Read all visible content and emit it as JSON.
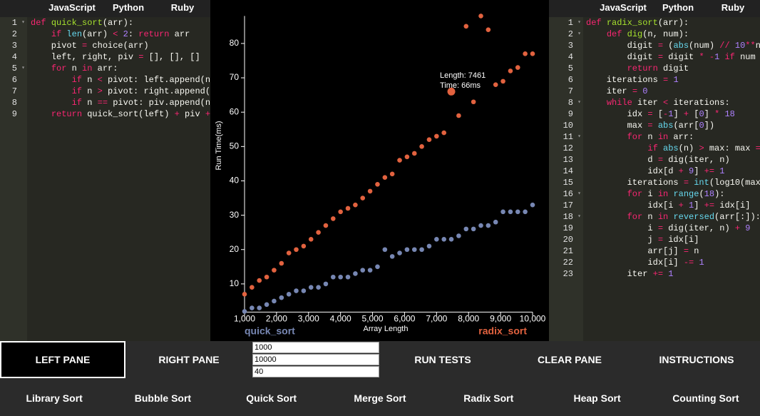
{
  "left_pane": {
    "tabs": [
      "JavaScript",
      "Python",
      "Ruby"
    ],
    "active_tab": 1,
    "lines": [
      {
        "n": 1,
        "fold": true,
        "tokens": [
          [
            "def",
            "kw"
          ],
          " ",
          [
            "quick_sort",
            "fn"
          ],
          "(arr):"
        ]
      },
      {
        "n": 2,
        "tokens": [
          "    ",
          [
            "if",
            "kw"
          ],
          " ",
          [
            "len",
            "bi"
          ],
          "(arr) ",
          [
            "<",
            "kw"
          ],
          " ",
          [
            "2",
            "num"
          ],
          ": ",
          [
            "return",
            "kw"
          ],
          " arr"
        ]
      },
      {
        "n": 3,
        "tokens": [
          "    pivot ",
          [
            "=",
            "kw"
          ],
          " choice(arr)"
        ]
      },
      {
        "n": 4,
        "tokens": [
          "    left, right, piv ",
          [
            "=",
            "kw"
          ],
          " [], [], []"
        ]
      },
      {
        "n": 5,
        "fold": true,
        "tokens": [
          "    ",
          [
            "for",
            "kw"
          ],
          " n ",
          [
            "in",
            "kw"
          ],
          " arr:"
        ]
      },
      {
        "n": 6,
        "tokens": [
          "        ",
          [
            "if",
            "kw"
          ],
          " n ",
          [
            "<",
            "kw"
          ],
          " pivot: left.append(n"
        ]
      },
      {
        "n": 7,
        "tokens": [
          "        ",
          [
            "if",
            "kw"
          ],
          " n ",
          [
            ">",
            "kw"
          ],
          " pivot: right.append("
        ]
      },
      {
        "n": 8,
        "tokens": [
          "        ",
          [
            "if",
            "kw"
          ],
          " n ",
          [
            "==",
            "kw"
          ],
          " pivot: piv.append(n"
        ]
      },
      {
        "n": 9,
        "tokens": [
          "    ",
          [
            "return",
            "kw"
          ],
          " quick_sort(left) ",
          [
            "+",
            "kw"
          ],
          " piv ",
          [
            "+",
            "kw"
          ]
        ]
      }
    ]
  },
  "right_pane": {
    "tabs": [
      "JavaScript",
      "Python",
      "Ruby"
    ],
    "active_tab": 1,
    "lines": [
      {
        "n": 1,
        "fold": true,
        "tokens": [
          [
            "def",
            "kw"
          ],
          " ",
          [
            "radix_sort",
            "fn"
          ],
          "(arr):"
        ]
      },
      {
        "n": 2,
        "fold": true,
        "tokens": [
          "    ",
          [
            "def",
            "kw"
          ],
          " ",
          [
            "dig",
            "fn"
          ],
          "(n, num):"
        ]
      },
      {
        "n": 3,
        "tokens": [
          "        digit ",
          [
            "=",
            "kw"
          ],
          " (",
          [
            "abs",
            "bi"
          ],
          "(num) ",
          [
            "//",
            "kw"
          ],
          " ",
          [
            "10",
            "num"
          ],
          [
            "**",
            "kw"
          ],
          "n"
        ]
      },
      {
        "n": 4,
        "tokens": [
          "        digit ",
          [
            "=",
            "kw"
          ],
          " digit ",
          [
            "*",
            "kw"
          ],
          " ",
          [
            "-",
            "kw"
          ],
          [
            "1",
            "num"
          ],
          " ",
          [
            "if",
            "kw"
          ],
          " num"
        ]
      },
      {
        "n": 5,
        "tokens": [
          "        ",
          [
            "return",
            "kw"
          ],
          " digit"
        ]
      },
      {
        "n": 6,
        "tokens": [
          "    iterations ",
          [
            "=",
            "kw"
          ],
          " ",
          [
            "1",
            "num"
          ]
        ]
      },
      {
        "n": 7,
        "tokens": [
          "    iter ",
          [
            "=",
            "kw"
          ],
          " ",
          [
            "0",
            "num"
          ]
        ]
      },
      {
        "n": 8,
        "fold": true,
        "tokens": [
          "    ",
          [
            "while",
            "kw"
          ],
          " iter ",
          [
            "<",
            "kw"
          ],
          " iterations:"
        ]
      },
      {
        "n": 9,
        "tokens": [
          "        idx ",
          [
            "=",
            "kw"
          ],
          " [",
          [
            "-",
            "kw"
          ],
          [
            "1",
            "num"
          ],
          "] ",
          [
            "+",
            "kw"
          ],
          " [",
          [
            "0",
            "num"
          ],
          "] ",
          [
            "*",
            "kw"
          ],
          " ",
          [
            "18",
            "num"
          ]
        ]
      },
      {
        "n": 10,
        "tokens": [
          "        max ",
          [
            "=",
            "kw"
          ],
          " ",
          [
            "abs",
            "bi"
          ],
          "(arr[",
          [
            "0",
            "num"
          ],
          "])"
        ]
      },
      {
        "n": 11,
        "fold": true,
        "tokens": [
          "        ",
          [
            "for",
            "kw"
          ],
          " n ",
          [
            "in",
            "kw"
          ],
          " arr:"
        ]
      },
      {
        "n": 12,
        "tokens": [
          "            ",
          [
            "if",
            "kw"
          ],
          " ",
          [
            "abs",
            "bi"
          ],
          "(n) ",
          [
            ">",
            "kw"
          ],
          " max: max ",
          [
            "=",
            "kw"
          ]
        ]
      },
      {
        "n": 13,
        "tokens": [
          "            d ",
          [
            "=",
            "kw"
          ],
          " dig(iter, n)"
        ]
      },
      {
        "n": 14,
        "tokens": [
          "            idx[d ",
          [
            "+",
            "kw"
          ],
          " ",
          [
            "9",
            "num"
          ],
          "] ",
          [
            "+=",
            "kw"
          ],
          " ",
          [
            "1",
            "num"
          ]
        ]
      },
      {
        "n": 15,
        "tokens": [
          "        iterations ",
          [
            "=",
            "kw"
          ],
          " ",
          [
            "int",
            "bi"
          ],
          "(log10(max"
        ]
      },
      {
        "n": 16,
        "fold": true,
        "tokens": [
          "        ",
          [
            "for",
            "kw"
          ],
          " i ",
          [
            "in",
            "kw"
          ],
          " ",
          [
            "range",
            "bi"
          ],
          "(",
          [
            "18",
            "num"
          ],
          "):"
        ]
      },
      {
        "n": 17,
        "tokens": [
          "            idx[i ",
          [
            "+",
            "kw"
          ],
          " ",
          [
            "1",
            "num"
          ],
          "] ",
          [
            "+=",
            "kw"
          ],
          " idx[i]"
        ]
      },
      {
        "n": 18,
        "fold": true,
        "tokens": [
          "        ",
          [
            "for",
            "kw"
          ],
          " n ",
          [
            "in",
            "kw"
          ],
          " ",
          [
            "reversed",
            "bi"
          ],
          "(arr[:]):"
        ]
      },
      {
        "n": 19,
        "tokens": [
          "            i ",
          [
            "=",
            "kw"
          ],
          " dig(iter, n) ",
          [
            "+",
            "kw"
          ],
          " ",
          [
            "9",
            "num"
          ]
        ]
      },
      {
        "n": 20,
        "tokens": [
          "            j ",
          [
            "=",
            "kw"
          ],
          " idx[i]"
        ]
      },
      {
        "n": 21,
        "tokens": [
          "            arr[j] ",
          [
            "=",
            "kw"
          ],
          " n"
        ]
      },
      {
        "n": 22,
        "tokens": [
          "            idx[i] ",
          [
            "-=",
            "kw"
          ],
          " ",
          [
            "1",
            "num"
          ]
        ]
      },
      {
        "n": 23,
        "tokens": [
          "        iter ",
          [
            "+=",
            "kw"
          ],
          " ",
          [
            "1",
            "num"
          ]
        ]
      }
    ]
  },
  "syntax_colors": {
    "kw": "#f92672",
    "fn": "#a6e22e",
    "bi": "#66d9ef",
    "num": "#ae81ff"
  },
  "chart_data": {
    "type": "scatter",
    "x_label": "Array Length",
    "y_label": "Run Time(ms)",
    "x": [
      1000,
      1231,
      1462,
      1692,
      1923,
      2154,
      2385,
      2615,
      2846,
      3077,
      3308,
      3538,
      3769,
      4000,
      4231,
      4462,
      4692,
      4923,
      5154,
      5385,
      5615,
      5846,
      6077,
      6308,
      6538,
      6769,
      7000,
      7231,
      7461,
      7692,
      7923,
      8154,
      8385,
      8615,
      8846,
      9077,
      9308,
      9538,
      9769,
      10000
    ],
    "series": [
      {
        "name": "quick_sort",
        "color": "#7787b3",
        "values": [
          2,
          3,
          3,
          4,
          5,
          6,
          7,
          8,
          8,
          9,
          9,
          10,
          12,
          12,
          12,
          13,
          14,
          14,
          15,
          20,
          18,
          19,
          20,
          20,
          20,
          21,
          23,
          23,
          23,
          24,
          26,
          26,
          27,
          27,
          28,
          31,
          31,
          31,
          31,
          33
        ]
      },
      {
        "name": "radix_sort",
        "color": "#e2623f",
        "values": [
          7,
          9,
          11,
          12,
          14,
          16,
          19,
          20,
          21,
          23,
          25,
          27,
          29,
          31,
          32,
          33,
          35,
          37,
          39,
          41,
          42,
          46,
          47,
          48,
          50,
          52,
          53,
          54,
          66,
          59,
          85,
          63,
          88,
          84,
          68,
          69,
          72,
          73,
          77,
          77
        ]
      }
    ],
    "tooltip": {
      "lines": [
        "Length: 7461",
        "Time: 66ms"
      ],
      "series": 1,
      "index": 28
    },
    "xlim": [
      1000,
      10000
    ],
    "ylim": [
      2,
      88
    ],
    "xticks": [
      {
        "value": 1000,
        "label": "1,000"
      },
      {
        "value": 2000,
        "label": "2,000"
      },
      {
        "value": 3000,
        "label": "3,000"
      },
      {
        "value": 4000,
        "label": "4,000"
      },
      {
        "value": 5000,
        "label": "5,000"
      },
      {
        "value": 6000,
        "label": "6,000"
      },
      {
        "value": 7000,
        "label": "7,000"
      },
      {
        "value": 8000,
        "label": "8,000"
      },
      {
        "value": 9000,
        "label": "9,000"
      },
      {
        "value": 10000,
        "label": "10,000"
      }
    ],
    "yticks": [
      10,
      20,
      30,
      40,
      50,
      60,
      70,
      80
    ],
    "grid": false
  },
  "controls": {
    "buttons": [
      "LEFT PANE",
      "RIGHT PANE",
      "RUN TESTS",
      "CLEAR PANE",
      "INSTRUCTIONS"
    ],
    "inputs": [
      "1000",
      "10000",
      "40"
    ],
    "sorts": [
      "Library Sort",
      "Bubble Sort",
      "Quick Sort",
      "Merge Sort",
      "Radix Sort",
      "Heap Sort",
      "Counting Sort"
    ]
  }
}
